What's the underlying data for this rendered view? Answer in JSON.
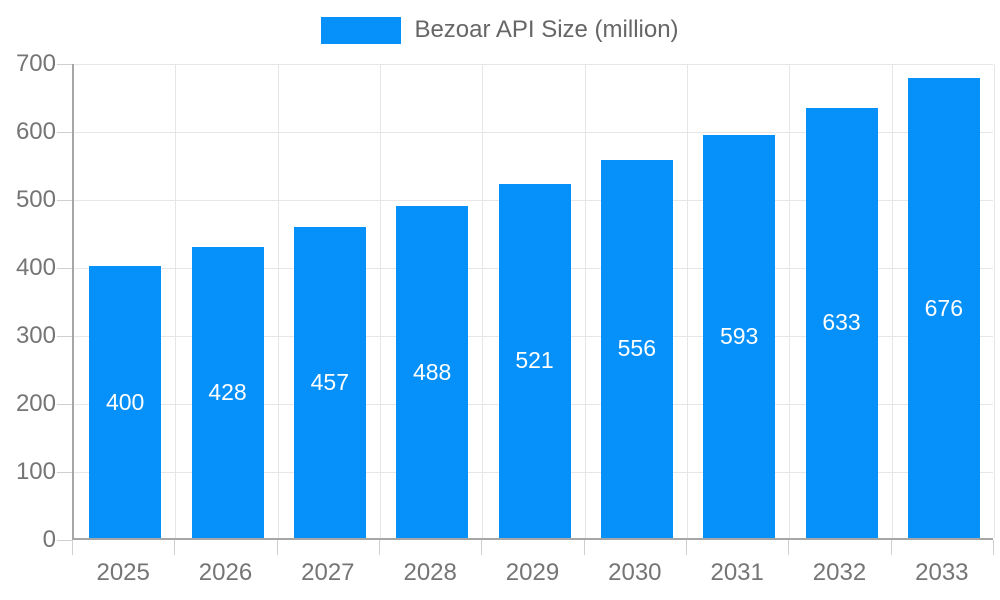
{
  "legend": {
    "label": "Bezoar API Size (million)"
  },
  "chart_data": {
    "type": "bar",
    "title": "Bezoar API Size (million)",
    "series_name": "Bezoar API Size (million)",
    "categories": [
      "2025",
      "2026",
      "2027",
      "2028",
      "2029",
      "2030",
      "2031",
      "2032",
      "2033"
    ],
    "values": [
      400,
      428,
      457,
      488,
      521,
      556,
      593,
      633,
      676
    ],
    "xlabel": "",
    "ylabel": "",
    "ylim": [
      0,
      700
    ],
    "ytick_interval": 100,
    "ytick_labels": [
      "0",
      "100",
      "200",
      "300",
      "400",
      "500",
      "600",
      "700"
    ],
    "grid": true,
    "legend_position": "top-center",
    "value_labels_shown": true,
    "colors": {
      "bar": "#0590fa",
      "value_label": "#ffffff",
      "axis_text": "#757575",
      "legend_text": "#666666",
      "gridline": "#e6e6e6",
      "axis_line": "#a6a6a6",
      "background": "#ffffff"
    }
  }
}
